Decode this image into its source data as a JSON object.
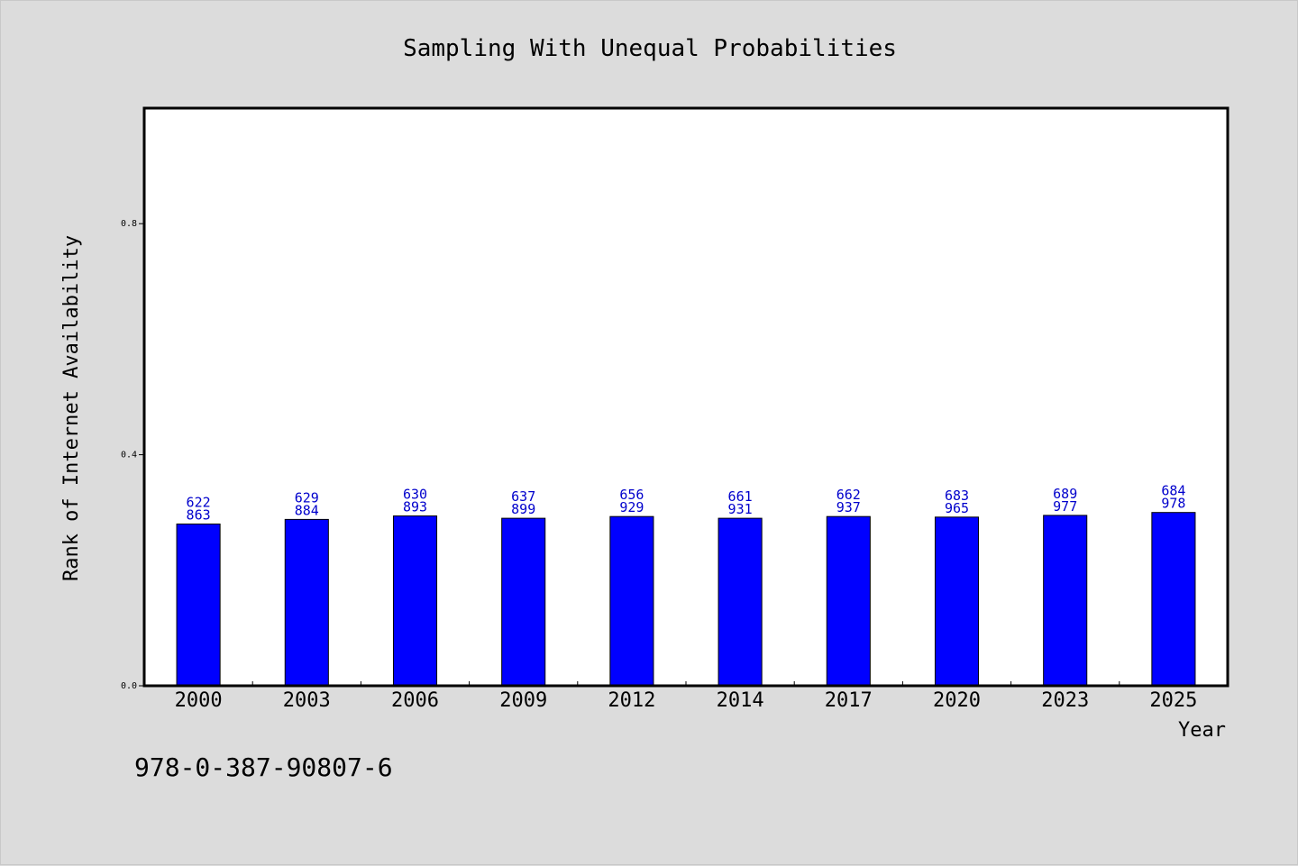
{
  "chart_data": {
    "type": "bar",
    "title": "Sampling With Unequal Probabilities",
    "xlabel": "Year",
    "ylabel": "Rank of Internet Availability",
    "categories": [
      "2000",
      "2003",
      "2006",
      "2009",
      "2012",
      "2014",
      "2017",
      "2020",
      "2023",
      "2025"
    ],
    "values": [
      0.28,
      0.288,
      0.294,
      0.29,
      0.293,
      0.29,
      0.293,
      0.292,
      0.295,
      0.3
    ],
    "bar_labels": [
      [
        "622",
        "863"
      ],
      [
        "629",
        "884"
      ],
      [
        "630",
        "893"
      ],
      [
        "637",
        "899"
      ],
      [
        "656",
        "929"
      ],
      [
        "661",
        "931"
      ],
      [
        "662",
        "937"
      ],
      [
        "683",
        "965"
      ],
      [
        "689",
        "977"
      ],
      [
        "684",
        "978"
      ]
    ],
    "yticks": [
      "0.0",
      "0.4",
      "0.8"
    ],
    "ytick_values": [
      0.0,
      0.4,
      0.8
    ],
    "ylim": [
      0,
      1.0
    ],
    "grid": false,
    "bar_color": "#0000ff",
    "bar_label_color": "#0000cc",
    "plot_background": "#ffffff",
    "figure_background": "#dcdcdc"
  },
  "footer": {
    "isbn": "978-0-387-90807-6"
  }
}
